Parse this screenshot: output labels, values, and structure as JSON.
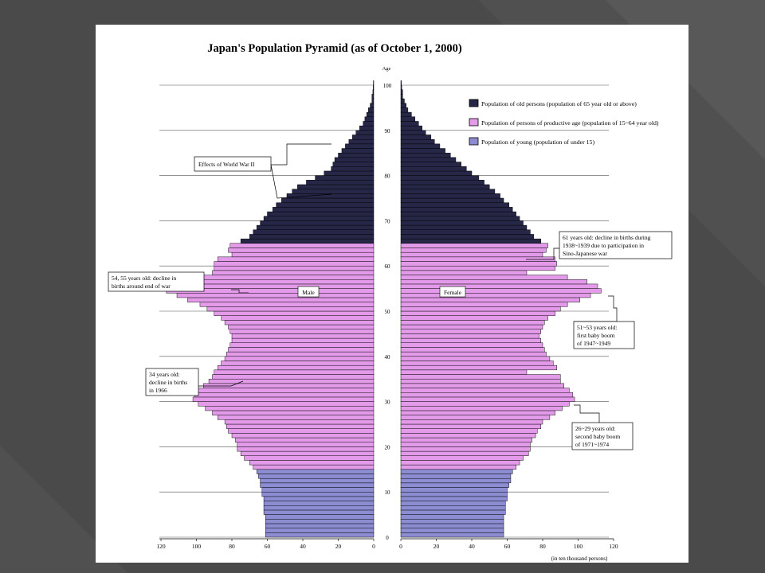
{
  "slide": {
    "background": "#4a4a4a",
    "decor_color": "#5a5a5a"
  },
  "chart_data": {
    "type": "bar",
    "orientation": "horizontal",
    "title": "Japan's Population Pyramid (as of October 1, 2000)",
    "y_axis_label": "Age",
    "age_ticks": [
      "0",
      "10",
      "20",
      "30",
      "40",
      "50",
      "60",
      "70",
      "80",
      "90",
      "100"
    ],
    "x_ticks_left": [
      "120",
      "100",
      "80",
      "60",
      "40",
      "20",
      "0"
    ],
    "x_ticks_right": [
      "0",
      "20",
      "40",
      "60",
      "80",
      "100",
      "120"
    ],
    "xlim": [
      0,
      120
    ],
    "x_unit": "(in ten thousand persons)",
    "ages": [
      0,
      1,
      2,
      3,
      4,
      5,
      6,
      7,
      8,
      9,
      10,
      11,
      12,
      13,
      14,
      15,
      16,
      17,
      18,
      19,
      20,
      21,
      22,
      23,
      24,
      25,
      26,
      27,
      28,
      29,
      30,
      31,
      32,
      33,
      34,
      35,
      36,
      37,
      38,
      39,
      40,
      41,
      42,
      43,
      44,
      45,
      46,
      47,
      48,
      49,
      50,
      51,
      52,
      53,
      54,
      55,
      56,
      57,
      58,
      59,
      60,
      61,
      62,
      63,
      64,
      65,
      66,
      67,
      68,
      69,
      70,
      71,
      72,
      73,
      74,
      75,
      76,
      77,
      78,
      79,
      80,
      81,
      82,
      83,
      84,
      85,
      86,
      87,
      88,
      89,
      90,
      91,
      92,
      93,
      94,
      95,
      96,
      97,
      98,
      99,
      100
    ],
    "series": [
      {
        "name": "Male",
        "values": [
          61,
          61,
          61,
          61,
          61,
          62,
          62,
          62,
          62,
          63,
          63,
          64,
          64,
          65,
          66,
          68,
          70,
          73,
          75,
          77,
          77,
          78,
          80,
          82,
          83,
          84,
          88,
          91,
          95,
          99,
          102,
          101,
          99,
          96,
          93,
          91,
          90,
          88,
          86,
          84,
          83,
          82,
          81,
          80,
          80,
          81,
          82,
          84,
          86,
          90,
          94,
          98,
          105,
          111,
          117,
          115,
          109,
          98,
          91,
          90,
          90,
          88,
          80,
          82,
          81,
          75,
          70,
          68,
          66,
          64,
          62,
          60,
          57,
          55,
          52,
          49,
          46,
          43,
          38,
          33,
          28,
          24,
          23,
          22,
          20,
          18,
          16,
          14,
          12,
          10,
          8,
          6,
          5,
          4,
          3,
          2,
          1,
          1,
          0.5,
          0.3,
          0.2
        ]
      },
      {
        "name": "Female",
        "values": [
          58,
          58,
          58,
          58,
          58,
          59,
          59,
          59,
          60,
          60,
          60,
          61,
          62,
          62,
          63,
          65,
          67,
          69,
          72,
          73,
          73,
          74,
          76,
          77,
          79,
          80,
          84,
          87,
          91,
          95,
          98,
          97,
          95,
          92,
          90,
          90,
          71,
          88,
          86,
          84,
          82,
          81,
          80,
          79,
          78,
          79,
          80,
          81,
          83,
          87,
          90,
          94,
          101,
          107,
          113,
          111,
          105,
          94,
          71,
          87,
          88,
          87,
          80,
          82,
          83,
          79,
          75,
          73,
          71,
          69,
          67,
          65,
          63,
          61,
          58,
          56,
          53,
          50,
          47,
          44,
          40,
          37,
          34,
          31,
          28,
          25,
          22,
          19,
          17,
          14,
          12,
          10,
          8,
          6,
          4,
          3,
          2,
          1,
          1,
          0.5,
          0.3
        ]
      }
    ],
    "segments": [
      {
        "name": "Population of young (population of under 15)",
        "ages": [
          0,
          14
        ],
        "color": "#8c8cd2"
      },
      {
        "name": "Population of persons of productive age (population of 15~64 year old)",
        "ages": [
          15,
          64
        ],
        "color": "#e29ae9"
      },
      {
        "name": "Population of old persons (population of 65 year old or above)",
        "ages": [
          65,
          100
        ],
        "color": "#262647"
      }
    ],
    "gender_labels": {
      "male": "Male",
      "female": "Female"
    },
    "annotations": {
      "ww2": "Effects of World War II",
      "age_54_55": [
        "54, 55 years old: decline in",
        "births around end of war"
      ],
      "age_34": [
        "34 years old:",
        "decline in births",
        "in 1966"
      ],
      "age_61": [
        "61 years old: decline in births during",
        "1938~1939 due to participation in",
        "Sino-Japanese war"
      ],
      "age_51_53": [
        "51~53 years old:",
        "first baby boom",
        "of 1947~1949"
      ],
      "age_26_29": [
        "26~29 years old:",
        "second baby boom",
        "of 1971~1974"
      ]
    },
    "legend_position": "top-right",
    "grid": true
  }
}
